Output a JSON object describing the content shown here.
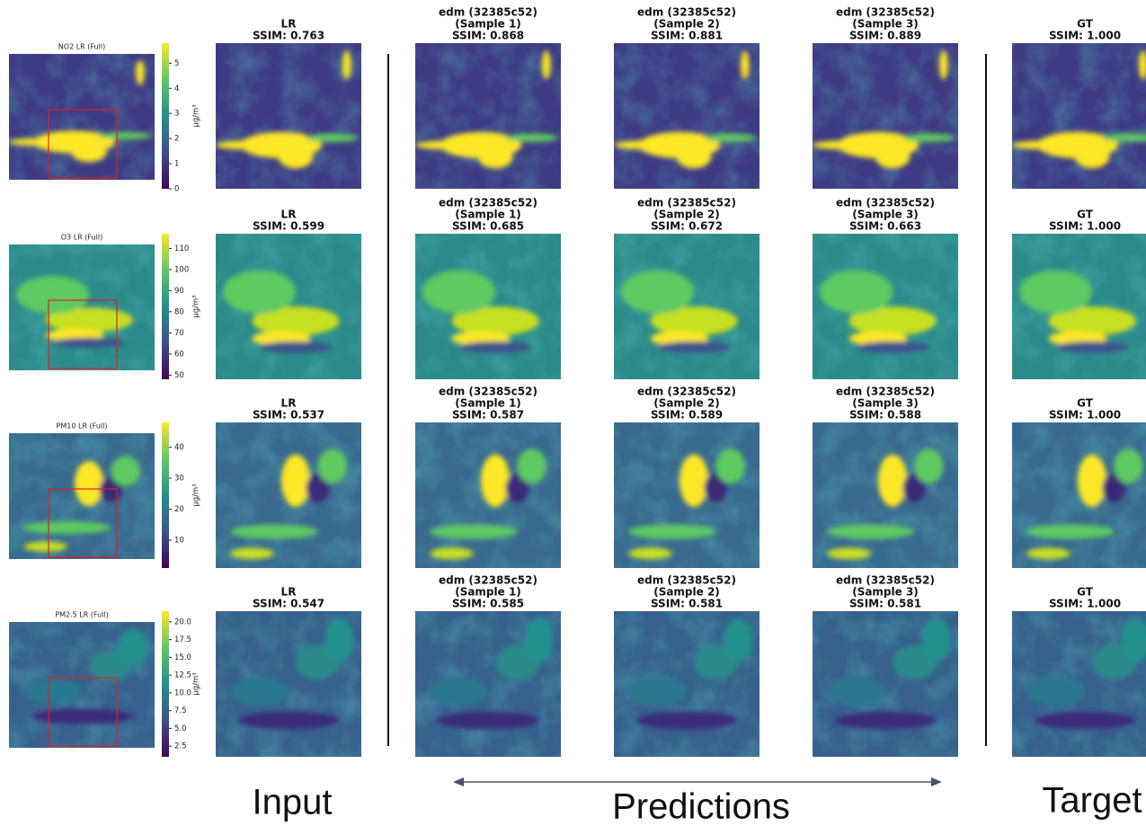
{
  "rows": [
    {
      "full": {
        "title": "NO2 LR (Full)",
        "colorbar": {
          "label": "μg/m³",
          "lim": [
            0,
            5.8
          ],
          "ticks": [
            0,
            1,
            2,
            3,
            4,
            5
          ]
        }
      },
      "panels": [
        {
          "lines": [
            "LR",
            "SSIM: 0.763"
          ]
        },
        {
          "lines": [
            "edm (32385c52)",
            "(Sample 1)",
            "SSIM: 0.868"
          ]
        },
        {
          "lines": [
            "edm (32385c52)",
            "(Sample 2)",
            "SSIM: 0.881"
          ]
        },
        {
          "lines": [
            "edm (32385c52)",
            "(Sample 3)",
            "SSIM: 0.889"
          ]
        },
        {
          "lines": [
            "GT",
            "SSIM: 1.000"
          ]
        }
      ]
    },
    {
      "full": {
        "title": "O3 LR (Full)",
        "colorbar": {
          "label": "μg/m³",
          "lim": [
            48,
            117
          ],
          "ticks": [
            50,
            60,
            70,
            80,
            90,
            100,
            110
          ]
        }
      },
      "panels": [
        {
          "lines": [
            "LR",
            "SSIM: 0.599"
          ]
        },
        {
          "lines": [
            "edm (32385c52)",
            "(Sample 1)",
            "SSIM: 0.685"
          ]
        },
        {
          "lines": [
            "edm (32385c52)",
            "(Sample 2)",
            "SSIM: 0.672"
          ]
        },
        {
          "lines": [
            "edm (32385c52)",
            "(Sample 3)",
            "SSIM: 0.663"
          ]
        },
        {
          "lines": [
            "GT",
            "SSIM: 1.000"
          ]
        }
      ]
    },
    {
      "full": {
        "title": "PM10 LR (Full)",
        "colorbar": {
          "label": "μg/m³",
          "lim": [
            1,
            48
          ],
          "ticks": [
            10,
            20,
            30,
            40
          ]
        }
      },
      "panels": [
        {
          "lines": [
            "LR",
            "SSIM: 0.537"
          ]
        },
        {
          "lines": [
            "edm (32385c52)",
            "(Sample 1)",
            "SSIM: 0.587"
          ]
        },
        {
          "lines": [
            "edm (32385c52)",
            "(Sample 2)",
            "SSIM: 0.589"
          ]
        },
        {
          "lines": [
            "edm (32385c52)",
            "(Sample 3)",
            "SSIM: 0.588"
          ]
        },
        {
          "lines": [
            "GT",
            "SSIM: 1.000"
          ]
        }
      ]
    },
    {
      "full": {
        "title": "PM2.5 LR (Full)",
        "colorbar": {
          "label": "μg/m³",
          "lim": [
            1,
            21.5
          ],
          "ticks": [
            {
              "value": 2.5,
              "label": "2.5"
            },
            {
              "value": 5,
              "label": "5.0"
            },
            {
              "value": 7.5,
              "label": "7.5"
            },
            {
              "value": 10,
              "label": "10.0"
            },
            {
              "value": 12.5,
              "label": "12.5"
            },
            {
              "value": 15,
              "label": "15.0"
            },
            {
              "value": 17.5,
              "label": "17.5"
            },
            {
              "value": 20,
              "label": "20.0"
            }
          ]
        }
      },
      "panels": [
        {
          "lines": [
            "LR",
            "SSIM: 0.547"
          ]
        },
        {
          "lines": [
            "edm (32385c52)",
            "(Sample 1)",
            "SSIM: 0.585"
          ]
        },
        {
          "lines": [
            "edm (32385c52)",
            "(Sample 2)",
            "SSIM: 0.581"
          ]
        },
        {
          "lines": [
            "edm (32385c52)",
            "(Sample 3)",
            "SSIM: 0.581"
          ]
        },
        {
          "lines": [
            "GT",
            "SSIM: 1.000"
          ]
        }
      ]
    }
  ],
  "footer": {
    "input": "Input",
    "predictions": "Predictions",
    "target": "Target"
  }
}
